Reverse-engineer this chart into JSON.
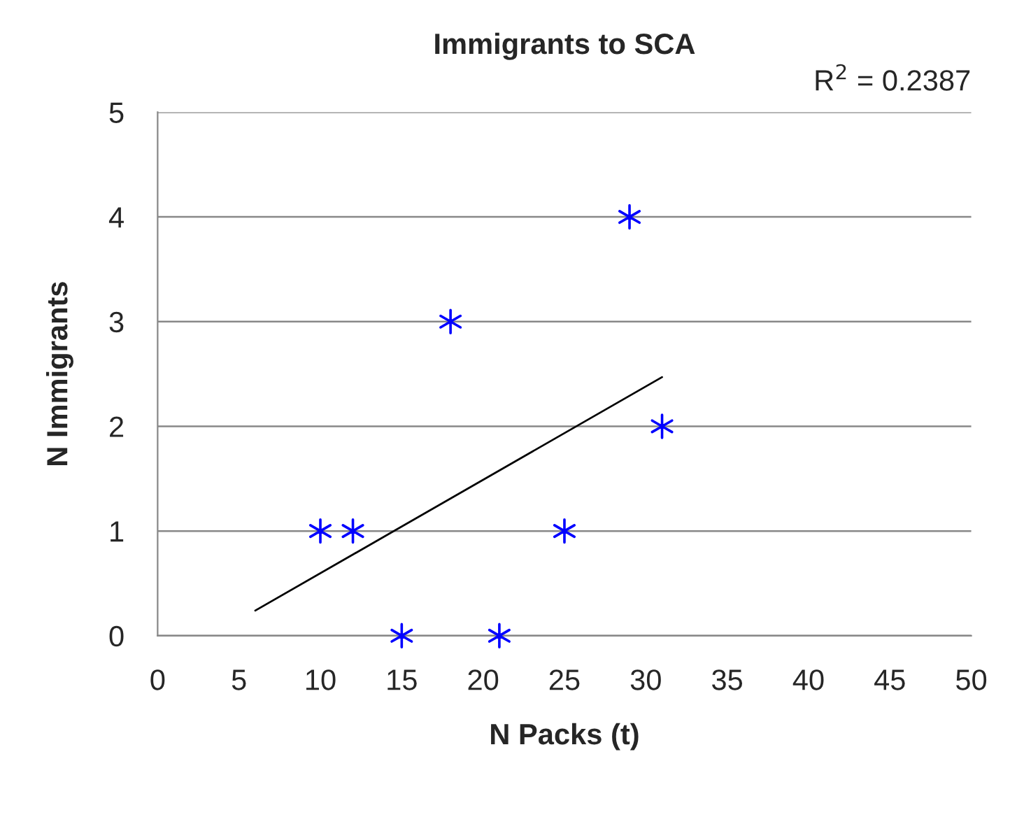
{
  "chart_data": {
    "type": "scatter",
    "title": "Immigrants to SCA",
    "xlabel": "N Packs (t)",
    "ylabel": "N Immigrants",
    "annotations": [
      "R$^{2}$ = 0.2387"
    ],
    "series": [
      {
        "color": "#0000ff",
        "marker": "cross",
        "x": [
          10,
          12,
          15,
          18,
          21,
          25,
          29,
          31
        ],
        "values": [
          1,
          1,
          0,
          3,
          0,
          1,
          4,
          2
        ]
      },
      {
        "type": "line",
        "color": "#000000",
        "marker": "none",
        "line_style": "solid",
        "x": [
          6,
          31
        ],
        "values": [
          0.24,
          2.47
        ]
      }
    ],
    "xlim": [
      0,
      50
    ],
    "xticks": [
      0,
      5,
      10,
      15,
      20,
      25,
      30,
      35,
      40,
      45,
      50
    ],
    "ylim": [
      0,
      5
    ],
    "yticks": [
      0,
      1,
      2,
      3,
      4,
      5
    ],
    "grid": "y",
    "legend": false
  }
}
